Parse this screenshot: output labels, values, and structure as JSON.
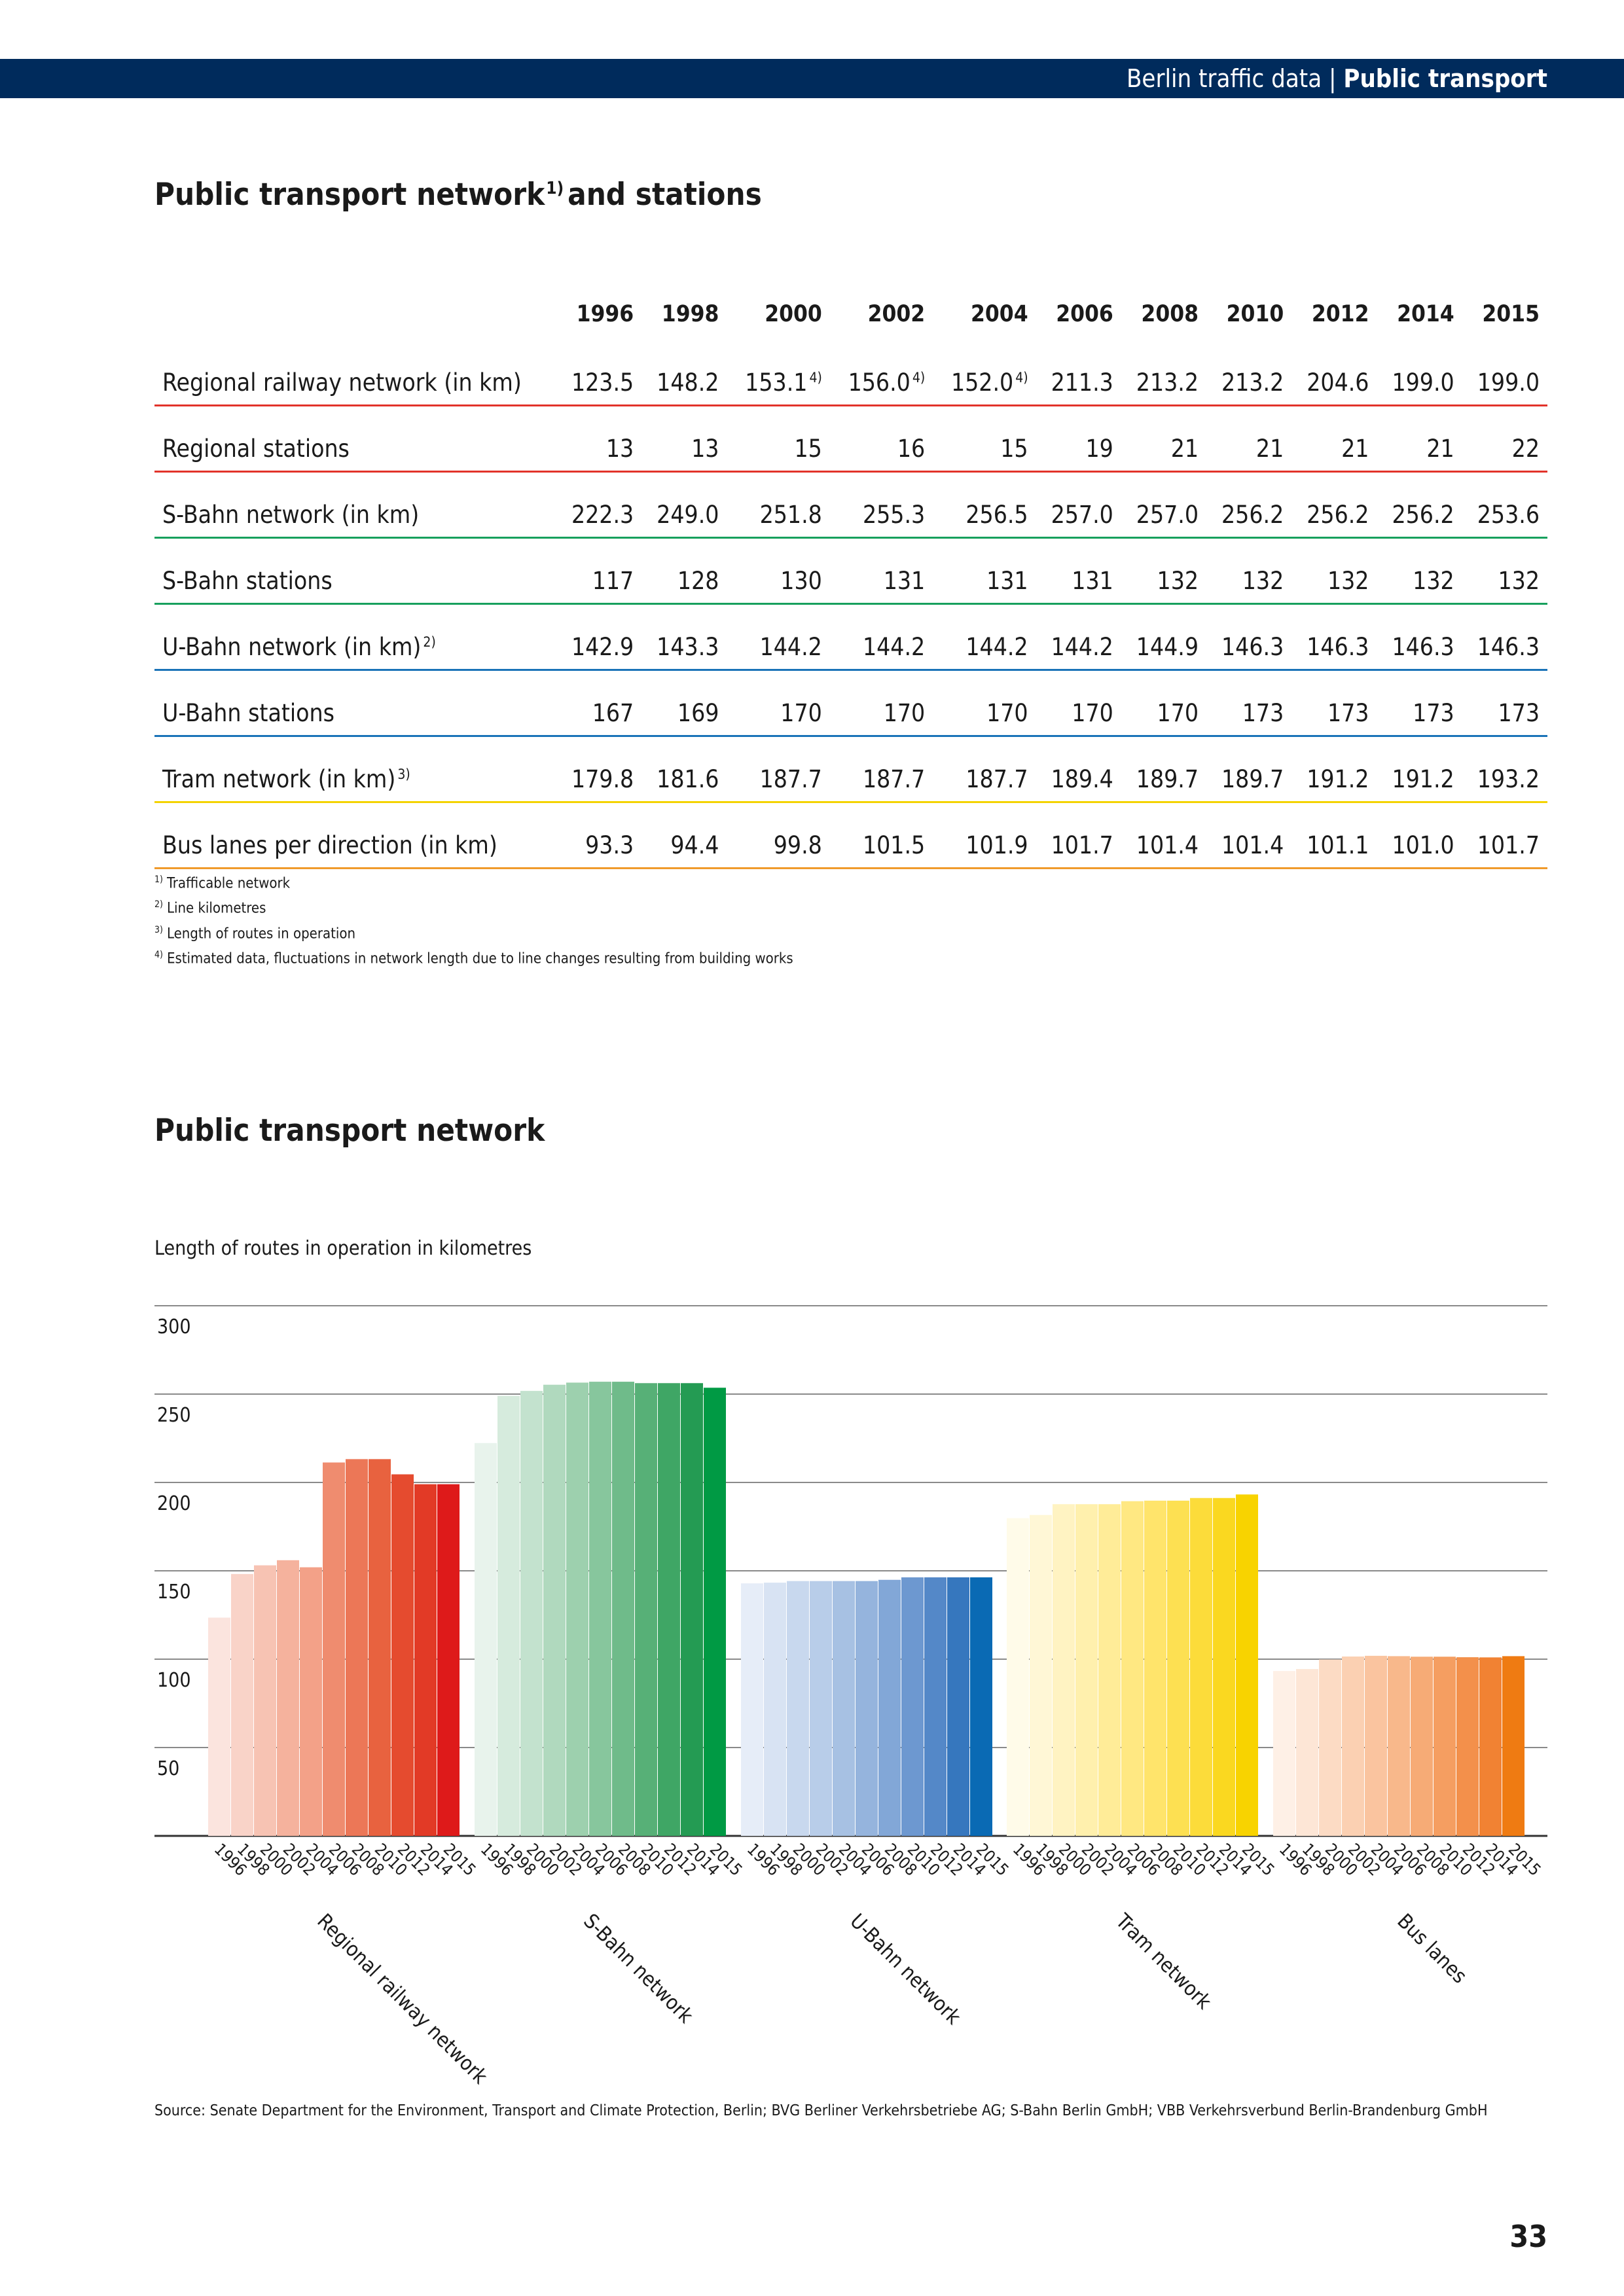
{
  "header": {
    "section": "Berlin traffic data",
    "separator": "|",
    "topic": "Public transport"
  },
  "table": {
    "title": "Public transport network",
    "title_sup": "1)",
    "title_rest": "and stations",
    "years": [
      "1996",
      "1998",
      "2000",
      "2002",
      "2004",
      "2006",
      "2008",
      "2010",
      "2012",
      "2014",
      "2015"
    ],
    "rows": [
      {
        "label": "Regional railway network (in km)",
        "label_sup": "",
        "values": [
          "123.5",
          "148.2",
          "153.1",
          "156.0",
          "152.0",
          "211.3",
          "213.2",
          "213.2",
          "204.6",
          "199.0",
          "199.0"
        ],
        "sups": [
          "",
          "",
          "4)",
          "4)",
          "4)",
          "",
          "",
          "",
          "",
          "",
          ""
        ]
      },
      {
        "label": "Regional stations",
        "label_sup": "",
        "values": [
          "13",
          "13",
          "15",
          "16",
          "15",
          "19",
          "21",
          "21",
          "21",
          "21",
          "22"
        ],
        "sups": [
          "",
          "",
          "",
          "",
          "",
          "",
          "",
          "",
          "",
          "",
          ""
        ]
      },
      {
        "label": "S-Bahn network (in km)",
        "label_sup": "",
        "values": [
          "222.3",
          "249.0",
          "251.8",
          "255.3",
          "256.5",
          "257.0",
          "257.0",
          "256.2",
          "256.2",
          "256.2",
          "253.6"
        ],
        "sups": [
          "",
          "",
          "",
          "",
          "",
          "",
          "",
          "",
          "",
          "",
          ""
        ]
      },
      {
        "label": "S-Bahn stations",
        "label_sup": "",
        "values": [
          "117",
          "128",
          "130",
          "131",
          "131",
          "131",
          "132",
          "132",
          "132",
          "132",
          "132"
        ],
        "sups": [
          "",
          "",
          "",
          "",
          "",
          "",
          "",
          "",
          "",
          "",
          ""
        ]
      },
      {
        "label": "U-Bahn network (in km)",
        "label_sup": "2)",
        "values": [
          "142.9",
          "143.3",
          "144.2",
          "144.2",
          "144.2",
          "144.2",
          "144.9",
          "146.3",
          "146.3",
          "146.3",
          "146.3"
        ],
        "sups": [
          "",
          "",
          "",
          "",
          "",
          "",
          "",
          "",
          "",
          "",
          ""
        ]
      },
      {
        "label": "U-Bahn stations",
        "label_sup": "",
        "values": [
          "167",
          "169",
          "170",
          "170",
          "170",
          "170",
          "170",
          "173",
          "173",
          "173",
          "173"
        ],
        "sups": [
          "",
          "",
          "",
          "",
          "",
          "",
          "",
          "",
          "",
          "",
          ""
        ]
      },
      {
        "label": "Tram network (in km)",
        "label_sup": "3)",
        "values": [
          "179.8",
          "181.6",
          "187.7",
          "187.7",
          "187.7",
          "189.4",
          "189.7",
          "189.7",
          "191.2",
          "191.2",
          "193.2"
        ],
        "sups": [
          "",
          "",
          "",
          "",
          "",
          "",
          "",
          "",
          "",
          "",
          ""
        ]
      },
      {
        "label": "Bus lanes per direction (in km)",
        "label_sup": "",
        "values": [
          "93.3",
          "94.4",
          "99.8",
          "101.5",
          "101.9",
          "101.7",
          "101.4",
          "101.4",
          "101.1",
          "101.0",
          "101.7"
        ],
        "sups": [
          "",
          "",
          "",
          "",
          "",
          "",
          "",
          "",
          "",
          "",
          ""
        ]
      }
    ]
  },
  "footnotes": [
    {
      "mark": "1)",
      "text": "Trafficable network"
    },
    {
      "mark": "2)",
      "text": "Line kilometres"
    },
    {
      "mark": "3)",
      "text": "Length of routes in operation"
    },
    {
      "mark": "4)",
      "text": "Estimated data, fluctuations in network length due to line changes resulting from building works"
    }
  ],
  "chart_title": "Public transport network",
  "chart_data": {
    "type": "bar",
    "subtitle": "Length of routes in operation in kilometres",
    "categories": [
      "1996",
      "1998",
      "2000",
      "2002",
      "2004",
      "2006",
      "2008",
      "2010",
      "2012",
      "2014",
      "2015"
    ],
    "ylim": [
      0,
      300
    ],
    "yticks": [
      50,
      100,
      150,
      200,
      250,
      300
    ],
    "grid": true,
    "series": [
      {
        "name": "Regional railway network",
        "values": [
          123.5,
          148.2,
          153.1,
          156.0,
          152.0,
          211.3,
          213.2,
          213.2,
          204.6,
          199.0,
          199.0
        ],
        "colors": [
          "#fbe4de",
          "#f9d3c8",
          "#f7c3b3",
          "#f5b29d",
          "#f3a188",
          "#ef8c6f",
          "#ec7757",
          "#e8623f",
          "#e54b2f",
          "#e23a26",
          "#de1a1a"
        ]
      },
      {
        "name": "S-Bahn network",
        "values": [
          222.3,
          249.0,
          251.8,
          255.3,
          256.5,
          257.0,
          257.0,
          256.2,
          256.2,
          256.2,
          253.6
        ],
        "colors": [
          "#e8f3ec",
          "#d6ebdd",
          "#c3e2ce",
          "#b0d9be",
          "#9dd0ae",
          "#87c69d",
          "#6fbb8a",
          "#57b077",
          "#3fa665",
          "#249b53",
          "#009a44"
        ]
      },
      {
        "name": "U-Bahn network",
        "values": [
          142.9,
          143.3,
          144.2,
          144.2,
          144.2,
          144.2,
          144.9,
          146.3,
          146.3,
          146.3,
          146.3
        ],
        "colors": [
          "#e6edf8",
          "#d8e3f3",
          "#c8d8ee",
          "#b8cde9",
          "#a7c1e3",
          "#95b4dd",
          "#82a7d7",
          "#6d98d0",
          "#5488c8",
          "#3677be",
          "#0a6ab4"
        ]
      },
      {
        "name": "Tram network",
        "values": [
          179.8,
          181.6,
          187.7,
          187.7,
          187.7,
          189.4,
          189.7,
          189.7,
          191.2,
          191.2,
          193.2
        ],
        "colors": [
          "#fffbe9",
          "#fff7d6",
          "#fff3c2",
          "#fff0ad",
          "#ffec98",
          "#ffe882",
          "#ffe46b",
          "#fde052",
          "#fcdc3a",
          "#fad820",
          "#f8d300"
        ]
      },
      {
        "name": "Bus lanes",
        "values": [
          93.3,
          94.4,
          99.8,
          101.5,
          101.9,
          101.7,
          101.4,
          101.4,
          101.1,
          101.0,
          101.7
        ],
        "colors": [
          "#fef0e6",
          "#fde6d6",
          "#fcdbc4",
          "#fbd0b2",
          "#fac49f",
          "#f8b88b",
          "#f6ab76",
          "#f59e61",
          "#f3904b",
          "#f18233",
          "#ef7b12"
        ]
      }
    ]
  },
  "source": "Source: Senate Department for the Environment, Transport and Climate Protection, Berlin; BVG Berliner Verkehrsbetriebe AG; S-Bahn Berlin GmbH; VBB Verkehrsverbund Berlin-Brandenburg GmbH",
  "page_number": "33"
}
